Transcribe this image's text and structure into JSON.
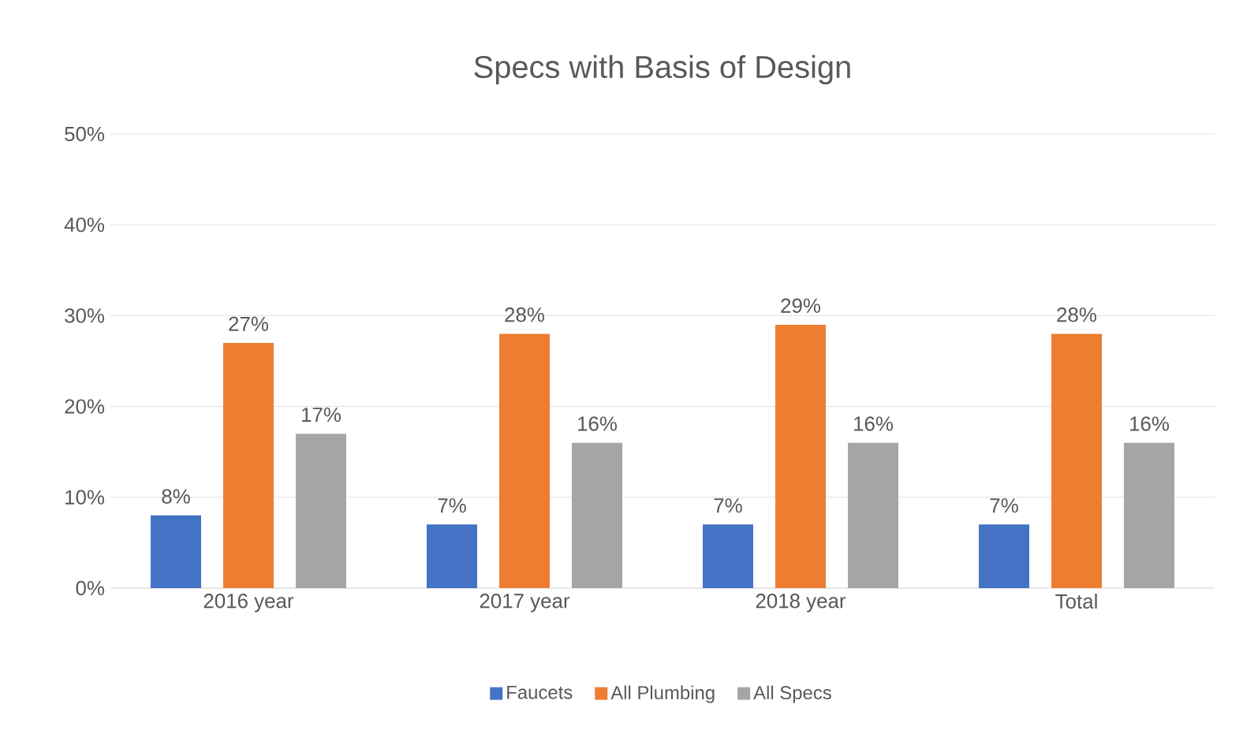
{
  "chart_data": {
    "type": "bar",
    "title": "Specs with Basis of Design",
    "categories": [
      "2016 year",
      "2017 year",
      "2018 year",
      "Total"
    ],
    "series": [
      {
        "name": "Faucets",
        "color": "#4472c4",
        "values": [
          8,
          7,
          7,
          7
        ],
        "value_labels": [
          "8%",
          "7%",
          "7%",
          "7%"
        ]
      },
      {
        "name": "All Plumbing",
        "color": "#ed7d31",
        "values": [
          27,
          28,
          29,
          28
        ],
        "value_labels": [
          "27%",
          "28%",
          "29%",
          "28%"
        ]
      },
      {
        "name": "All Specs",
        "color": "#a5a5a5",
        "values": [
          17,
          16,
          16,
          16
        ],
        "value_labels": [
          "17%",
          "16%",
          "16%",
          "16%"
        ]
      }
    ],
    "ylim": [
      0,
      50
    ],
    "yticks": [
      {
        "value": 0,
        "label": "0%"
      },
      {
        "value": 10,
        "label": "10%"
      },
      {
        "value": 20,
        "label": "20%"
      },
      {
        "value": 30,
        "label": "30%"
      },
      {
        "value": 40,
        "label": "40%"
      },
      {
        "value": 50,
        "label": "50%"
      }
    ],
    "grid": "y",
    "legend": "bottom"
  }
}
